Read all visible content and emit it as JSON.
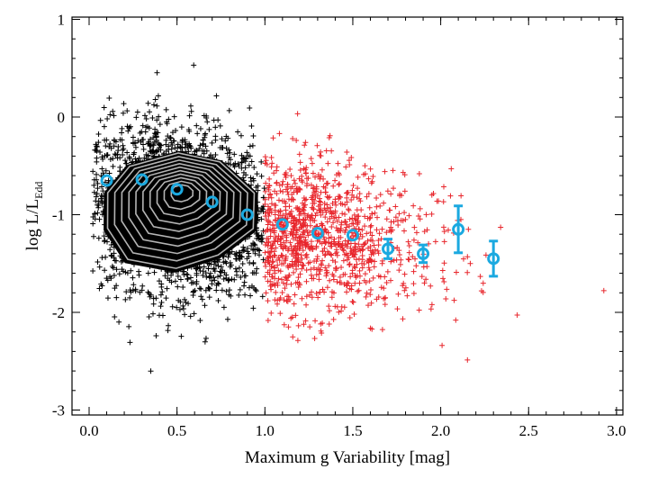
{
  "chart_data": {
    "type": "scatter",
    "title": "",
    "xlabel": "Maximum g Variability [mag]",
    "ylabel": {
      "main": "log L/L",
      "sub": "Edd"
    },
    "xlim": [
      -0.1,
      3.0
    ],
    "ylim": [
      -3.05,
      1.0
    ],
    "xticks": [
      "0.0",
      "0.5",
      "1.0",
      "1.5",
      "2.0",
      "2.5",
      "3.0"
    ],
    "xtick_values": [
      0.0,
      0.5,
      1.0,
      1.5,
      2.0,
      2.5,
      3.0
    ],
    "yticks": [
      "-3",
      "-2",
      "-1",
      "0",
      "1"
    ],
    "ytick_values": [
      -3,
      -2,
      -1,
      0,
      1
    ],
    "grid": false,
    "colors": {
      "low_variability": "#000000",
      "high_variability": "#e8262c",
      "binned": "#1ba9e0",
      "contour": "#b4b4b4"
    },
    "split_x": 1.0,
    "sample_points": {
      "low_variability_count": 2600,
      "high_variability_count": 1100
    },
    "density_peak": {
      "x": 0.52,
      "y": -0.75
    },
    "binned_means": [
      {
        "x": 0.1,
        "y": -0.65,
        "err": 0.0
      },
      {
        "x": 0.3,
        "y": -0.64,
        "err": 0.0
      },
      {
        "x": 0.5,
        "y": -0.74,
        "err": 0.0
      },
      {
        "x": 0.7,
        "y": -0.87,
        "err": 0.0
      },
      {
        "x": 0.9,
        "y": -1.0,
        "err": 0.0
      },
      {
        "x": 1.1,
        "y": -1.1,
        "err": 0.0
      },
      {
        "x": 1.3,
        "y": -1.19,
        "err": 0.0
      },
      {
        "x": 1.5,
        "y": -1.21,
        "err": 0.0
      },
      {
        "x": 1.7,
        "y": -1.35,
        "err": 0.1
      },
      {
        "x": 1.9,
        "y": -1.4,
        "err": 0.09
      },
      {
        "x": 2.1,
        "y": -1.15,
        "err": 0.24
      },
      {
        "x": 2.3,
        "y": -1.45,
        "err": 0.18
      }
    ]
  }
}
